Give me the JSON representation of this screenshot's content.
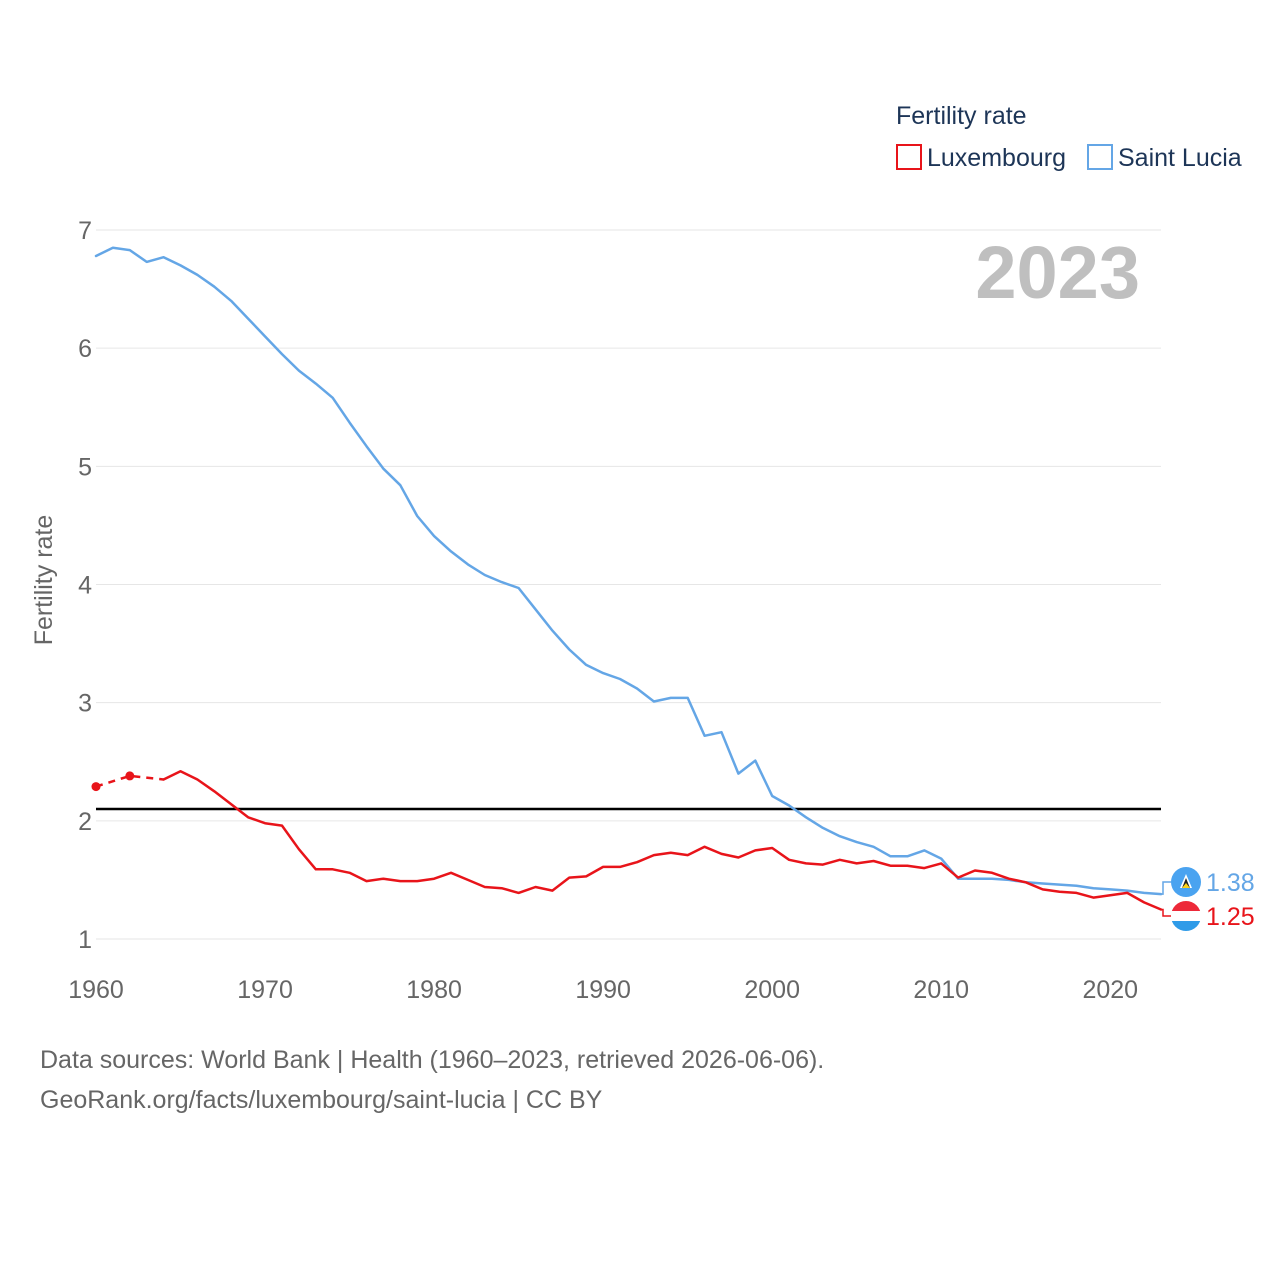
{
  "chart_data": {
    "type": "line",
    "title": "Fertility rate",
    "ylabel": "Fertility rate",
    "xlabel": "",
    "year_watermark": "2023",
    "xlim": [
      1960,
      2023
    ],
    "ylim": [
      1,
      7
    ],
    "x_ticks": [
      "1960",
      "1970",
      "1980",
      "1990",
      "2000",
      "2010",
      "2020"
    ],
    "y_ticks": [
      "1",
      "2",
      "3",
      "4",
      "5",
      "6",
      "7"
    ],
    "reference_line": 2.1,
    "legend_title": "Fertility rate",
    "series": [
      {
        "name": "Luxembourg",
        "color": "#e8141a",
        "end_label": "1.25",
        "flag": "luxembourg-flag",
        "estimated_points": [
          [
            1960,
            2.29
          ],
          [
            1962,
            2.38
          ]
        ],
        "estimated_segment": [
          [
            1960,
            2.29
          ],
          [
            1962,
            2.38
          ],
          [
            1964,
            2.35
          ]
        ],
        "points": [
          [
            1964,
            2.35
          ],
          [
            1965,
            2.42
          ],
          [
            1966,
            2.35
          ],
          [
            1967,
            2.25
          ],
          [
            1968,
            2.14
          ],
          [
            1969,
            2.03
          ],
          [
            1970,
            1.98
          ],
          [
            1971,
            1.96
          ],
          [
            1972,
            1.76
          ],
          [
            1973,
            1.59
          ],
          [
            1974,
            1.59
          ],
          [
            1975,
            1.56
          ],
          [
            1976,
            1.49
          ],
          [
            1977,
            1.51
          ],
          [
            1978,
            1.49
          ],
          [
            1979,
            1.49
          ],
          [
            1980,
            1.51
          ],
          [
            1981,
            1.56
          ],
          [
            1982,
            1.5
          ],
          [
            1983,
            1.44
          ],
          [
            1984,
            1.43
          ],
          [
            1985,
            1.39
          ],
          [
            1986,
            1.44
          ],
          [
            1987,
            1.41
          ],
          [
            1988,
            1.52
          ],
          [
            1989,
            1.53
          ],
          [
            1990,
            1.61
          ],
          [
            1991,
            1.61
          ],
          [
            1992,
            1.65
          ],
          [
            1993,
            1.71
          ],
          [
            1994,
            1.73
          ],
          [
            1995,
            1.71
          ],
          [
            1996,
            1.78
          ],
          [
            1997,
            1.72
          ],
          [
            1998,
            1.69
          ],
          [
            1999,
            1.75
          ],
          [
            2000,
            1.77
          ],
          [
            2001,
            1.67
          ],
          [
            2002,
            1.64
          ],
          [
            2003,
            1.63
          ],
          [
            2004,
            1.67
          ],
          [
            2005,
            1.64
          ],
          [
            2006,
            1.66
          ],
          [
            2007,
            1.62
          ],
          [
            2008,
            1.62
          ],
          [
            2009,
            1.6
          ],
          [
            2010,
            1.64
          ],
          [
            2011,
            1.52
          ],
          [
            2012,
            1.58
          ],
          [
            2013,
            1.56
          ],
          [
            2014,
            1.51
          ],
          [
            2015,
            1.48
          ],
          [
            2016,
            1.42
          ],
          [
            2017,
            1.4
          ],
          [
            2018,
            1.39
          ],
          [
            2019,
            1.35
          ],
          [
            2020,
            1.37
          ],
          [
            2021,
            1.39
          ],
          [
            2022,
            1.31
          ],
          [
            2023,
            1.25
          ]
        ]
      },
      {
        "name": "Saint Lucia",
        "color": "#64a6e6",
        "end_label": "1.38",
        "flag": "saint-lucia-flag",
        "points": [
          [
            1960,
            6.78
          ],
          [
            1961,
            6.85
          ],
          [
            1962,
            6.83
          ],
          [
            1963,
            6.73
          ],
          [
            1964,
            6.77
          ],
          [
            1965,
            6.7
          ],
          [
            1966,
            6.62
          ],
          [
            1967,
            6.52
          ],
          [
            1968,
            6.4
          ],
          [
            1969,
            6.25
          ],
          [
            1970,
            6.1
          ],
          [
            1971,
            5.95
          ],
          [
            1972,
            5.81
          ],
          [
            1973,
            5.7
          ],
          [
            1974,
            5.58
          ],
          [
            1975,
            5.37
          ],
          [
            1976,
            5.17
          ],
          [
            1977,
            4.98
          ],
          [
            1978,
            4.84
          ],
          [
            1979,
            4.58
          ],
          [
            1980,
            4.41
          ],
          [
            1981,
            4.28
          ],
          [
            1982,
            4.17
          ],
          [
            1983,
            4.08
          ],
          [
            1984,
            4.02
          ],
          [
            1985,
            3.97
          ],
          [
            1986,
            3.79
          ],
          [
            1987,
            3.61
          ],
          [
            1988,
            3.45
          ],
          [
            1989,
            3.32
          ],
          [
            1990,
            3.25
          ],
          [
            1991,
            3.2
          ],
          [
            1992,
            3.12
          ],
          [
            1993,
            3.01
          ],
          [
            1994,
            3.04
          ],
          [
            1995,
            3.04
          ],
          [
            1996,
            2.72
          ],
          [
            1997,
            2.75
          ],
          [
            1998,
            2.4
          ],
          [
            1999,
            2.51
          ],
          [
            2000,
            2.21
          ],
          [
            2001,
            2.13
          ],
          [
            2002,
            2.03
          ],
          [
            2003,
            1.94
          ],
          [
            2004,
            1.87
          ],
          [
            2005,
            1.82
          ],
          [
            2006,
            1.78
          ],
          [
            2007,
            1.7
          ],
          [
            2008,
            1.7
          ],
          [
            2009,
            1.75
          ],
          [
            2010,
            1.68
          ],
          [
            2011,
            1.51
          ],
          [
            2012,
            1.51
          ],
          [
            2013,
            1.51
          ],
          [
            2014,
            1.5
          ],
          [
            2015,
            1.48
          ],
          [
            2016,
            1.47
          ],
          [
            2017,
            1.46
          ],
          [
            2018,
            1.45
          ],
          [
            2019,
            1.43
          ],
          [
            2020,
            1.42
          ],
          [
            2021,
            1.41
          ],
          [
            2022,
            1.39
          ],
          [
            2023,
            1.38
          ]
        ]
      }
    ]
  },
  "footer": {
    "line1": "Data sources: World Bank | Health (1960–2023, retrieved 2026-06-06).",
    "line2": "GeoRank.org/facts/luxembourg/saint-lucia | CC BY"
  }
}
